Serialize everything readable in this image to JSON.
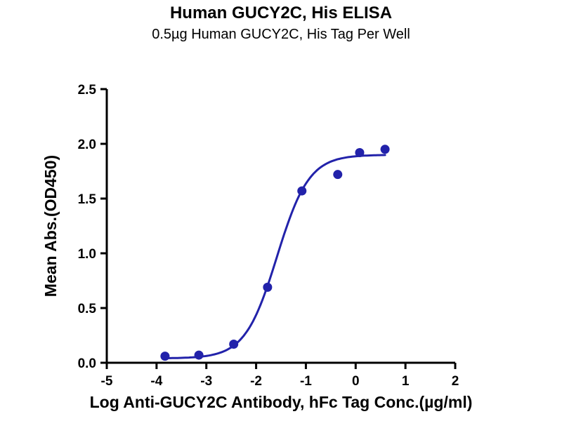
{
  "page": {
    "title": "Human GUCY2C, His ELISA",
    "subtitle": "0.5µg Human GUCY2C, His Tag Per Well"
  },
  "chart_data": {
    "type": "scatter",
    "title": "Human GUCY2C, His ELISA",
    "subtitle": "0.5µg Human GUCY2C, His Tag Per Well",
    "xlabel": "Log Anti-GUCY2C Antibody, hFc Tag Conc.(µg/ml)",
    "ylabel": "Mean Abs.(OD450)",
    "xlim": [
      -5,
      2
    ],
    "ylim": [
      0,
      2.5
    ],
    "x_ticks": [
      "-5",
      "-4",
      "-3",
      "-2",
      "-1",
      "0",
      "1",
      "2"
    ],
    "x_tick_values": [
      -5,
      -4,
      -3,
      -2,
      -1,
      0,
      1,
      2
    ],
    "y_ticks": [
      "0.0",
      "0.5",
      "1.0",
      "1.5",
      "2.0",
      "2.5"
    ],
    "y_tick_values": [
      0,
      0.5,
      1.0,
      1.5,
      2.0,
      2.5
    ],
    "grid": false,
    "legend": null,
    "points": [
      {
        "x": -3.83,
        "y": 0.06
      },
      {
        "x": -3.15,
        "y": 0.07
      },
      {
        "x": -2.45,
        "y": 0.17
      },
      {
        "x": -1.77,
        "y": 0.69
      },
      {
        "x": -1.08,
        "y": 1.57
      },
      {
        "x": -0.36,
        "y": 1.72
      },
      {
        "x": 0.08,
        "y": 1.92
      },
      {
        "x": 0.59,
        "y": 1.95
      }
    ],
    "fit_curve": {
      "model": "4PL-sigmoid",
      "bottom": 0.04,
      "top": 1.9,
      "hill": 1.35,
      "log_ec50": -1.58,
      "x_start": -3.83,
      "x_end": 0.59
    },
    "colors": {
      "series": "#2222aa",
      "axis": "#000000",
      "background": "#ffffff"
    }
  }
}
